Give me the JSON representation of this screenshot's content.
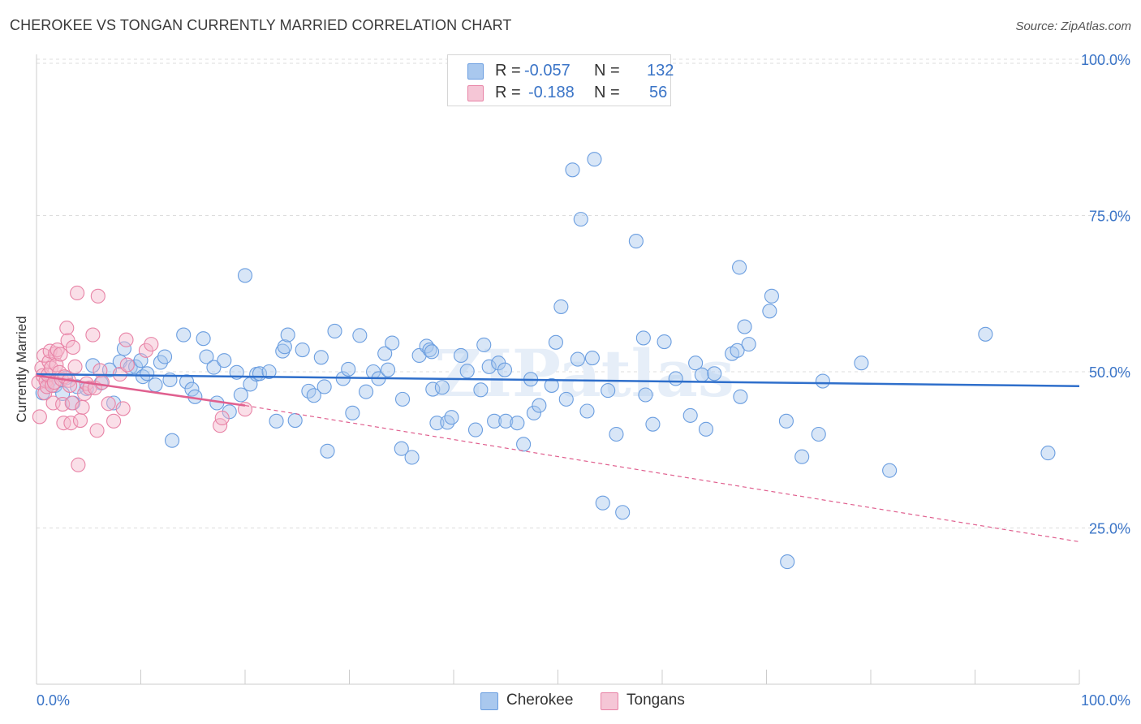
{
  "title": "CHEROKEE VS TONGAN CURRENTLY MARRIED CORRELATION CHART",
  "source": "Source: ZipAtlas.com",
  "watermark": "ZIPatlas",
  "legend": {
    "row1": {
      "r_label": "R =",
      "r_value": "-0.057",
      "n_label": "N =",
      "n_value": "132"
    },
    "row2": {
      "r_label": "R =",
      "r_value": "-0.188",
      "n_label": "N =",
      "n_value": "56"
    }
  },
  "bottom_legend": {
    "cherokee": "Cherokee",
    "tongans": "Tongans"
  },
  "colors": {
    "cherokee_fill": "#a9c8ee",
    "cherokee_stroke": "#6b9ee0",
    "cherokee_line": "#2f6fcb",
    "tongan_fill": "#f5b7cb",
    "tongan_stroke": "#e883a6",
    "tongan_line": "#e0608f",
    "axis_text": "#3a74c7",
    "grid": "#dddddd"
  },
  "chart_data": {
    "type": "scatter",
    "title": "CHEROKEE VS TONGAN CURRENTLY MARRIED CORRELATION CHART",
    "xlabel": "",
    "ylabel": "Currently Married",
    "xlim": [
      0,
      100
    ],
    "ylim": [
      0,
      105
    ],
    "x_tick_labels": [
      "0.0%",
      "100.0%"
    ],
    "y_ticks": [
      25,
      50,
      75,
      100
    ],
    "y_tick_labels": [
      "25.0%",
      "50.0%",
      "75.0%",
      "100.0%"
    ],
    "grid": true,
    "legend_position": "top-center",
    "series": [
      {
        "name": "Cherokee",
        "r": -0.057,
        "n": 132,
        "trend": {
          "x": [
            0,
            100
          ],
          "y": [
            49.6,
            47.7
          ],
          "style": "solid"
        },
        "points": [
          [
            0.6,
            46.6
          ],
          [
            1.2,
            48.5
          ],
          [
            1.8,
            47.8
          ],
          [
            2.5,
            46.5
          ],
          [
            2.8,
            49.0
          ],
          [
            3.5,
            45.0
          ],
          [
            3.9,
            47.6
          ],
          [
            4.8,
            47.3
          ],
          [
            5.4,
            51.0
          ],
          [
            6.2,
            48.2
          ],
          [
            7.0,
            50.3
          ],
          [
            7.4,
            45.0
          ],
          [
            8.0,
            51.6
          ],
          [
            8.4,
            53.7
          ],
          [
            9.0,
            50.7
          ],
          [
            9.5,
            50.8
          ],
          [
            10.0,
            51.8
          ],
          [
            10.2,
            49.2
          ],
          [
            10.6,
            49.7
          ],
          [
            11.4,
            47.9
          ],
          [
            11.9,
            51.5
          ],
          [
            12.3,
            52.4
          ],
          [
            12.8,
            48.7
          ],
          [
            13.0,
            39.0
          ],
          [
            14.1,
            55.9
          ],
          [
            14.4,
            48.4
          ],
          [
            14.9,
            47.2
          ],
          [
            15.2,
            46.0
          ],
          [
            16.0,
            55.3
          ],
          [
            16.3,
            52.4
          ],
          [
            17.0,
            50.7
          ],
          [
            17.3,
            45.0
          ],
          [
            18.0,
            51.8
          ],
          [
            18.5,
            43.6
          ],
          [
            19.2,
            49.9
          ],
          [
            19.6,
            46.3
          ],
          [
            20.0,
            65.4
          ],
          [
            20.5,
            48.0
          ],
          [
            21.1,
            49.6
          ],
          [
            21.4,
            49.7
          ],
          [
            22.3,
            50.0
          ],
          [
            23.0,
            42.1
          ],
          [
            23.6,
            53.3
          ],
          [
            23.8,
            54.0
          ],
          [
            24.1,
            55.9
          ],
          [
            24.8,
            42.2
          ],
          [
            25.5,
            53.5
          ],
          [
            26.1,
            46.9
          ],
          [
            26.6,
            46.2
          ],
          [
            27.3,
            52.3
          ],
          [
            27.6,
            47.6
          ],
          [
            27.9,
            37.3
          ],
          [
            28.6,
            56.5
          ],
          [
            29.4,
            48.9
          ],
          [
            29.9,
            50.4
          ],
          [
            30.3,
            43.4
          ],
          [
            31.0,
            55.8
          ],
          [
            31.6,
            46.8
          ],
          [
            32.3,
            50.0
          ],
          [
            32.8,
            48.9
          ],
          [
            33.4,
            52.9
          ],
          [
            33.7,
            50.3
          ],
          [
            34.1,
            54.6
          ],
          [
            35.1,
            45.6
          ],
          [
            35.0,
            37.7
          ],
          [
            36.0,
            36.3
          ],
          [
            36.7,
            52.6
          ],
          [
            37.4,
            54.1
          ],
          [
            37.7,
            53.5
          ],
          [
            37.9,
            53.2
          ],
          [
            38.0,
            47.2
          ],
          [
            38.4,
            41.8
          ],
          [
            38.9,
            47.5
          ],
          [
            39.4,
            41.9
          ],
          [
            39.8,
            42.7
          ],
          [
            40.7,
            52.6
          ],
          [
            41.3,
            50.1
          ],
          [
            42.1,
            40.7
          ],
          [
            42.6,
            47.1
          ],
          [
            42.9,
            54.3
          ],
          [
            43.4,
            50.8
          ],
          [
            43.9,
            42.1
          ],
          [
            44.3,
            51.4
          ],
          [
            44.9,
            50.3
          ],
          [
            45.0,
            42.1
          ],
          [
            46.1,
            41.8
          ],
          [
            46.7,
            38.4
          ],
          [
            47.4,
            48.8
          ],
          [
            47.7,
            43.4
          ],
          [
            48.2,
            44.6
          ],
          [
            49.4,
            47.8
          ],
          [
            49.8,
            54.7
          ],
          [
            50.3,
            60.4
          ],
          [
            50.8,
            45.6
          ],
          [
            51.4,
            82.3
          ],
          [
            51.9,
            52.0
          ],
          [
            52.2,
            74.4
          ],
          [
            52.8,
            43.7
          ],
          [
            53.3,
            52.2
          ],
          [
            53.5,
            84.0
          ],
          [
            54.3,
            29.0
          ],
          [
            54.8,
            47.0
          ],
          [
            55.6,
            40.0
          ],
          [
            56.2,
            27.5
          ],
          [
            57.5,
            70.9
          ],
          [
            58.2,
            55.4
          ],
          [
            58.4,
            46.3
          ],
          [
            59.1,
            41.6
          ],
          [
            60.2,
            54.8
          ],
          [
            61.3,
            48.9
          ],
          [
            62.7,
            43.0
          ],
          [
            63.2,
            51.4
          ],
          [
            63.8,
            49.5
          ],
          [
            64.2,
            40.8
          ],
          [
            65.0,
            49.7
          ],
          [
            66.7,
            52.9
          ],
          [
            67.2,
            53.4
          ],
          [
            67.4,
            66.7
          ],
          [
            67.5,
            46.0
          ],
          [
            67.9,
            57.2
          ],
          [
            70.3,
            59.7
          ],
          [
            70.5,
            62.1
          ],
          [
            71.9,
            42.1
          ],
          [
            72.0,
            19.6
          ],
          [
            73.4,
            36.4
          ],
          [
            75.0,
            40.0
          ],
          [
            75.4,
            48.5
          ],
          [
            81.8,
            34.2
          ],
          [
            91.0,
            56.0
          ],
          [
            97.0,
            37.0
          ],
          [
            79.1,
            51.4
          ],
          [
            68.3,
            54.4
          ]
        ]
      },
      {
        "name": "Tongans",
        "r": -0.188,
        "n": 56,
        "trend": {
          "x": [
            0,
            20
          ],
          "y": [
            49.4,
            44.6
          ],
          "style": "solid",
          "extension": {
            "x": [
              20,
              100
            ],
            "y": [
              44.6,
              22.8
            ],
            "style": "dashed"
          }
        },
        "points": [
          [
            0.2,
            48.3
          ],
          [
            0.3,
            42.8
          ],
          [
            0.5,
            50.6
          ],
          [
            0.6,
            49.4
          ],
          [
            0.7,
            52.6
          ],
          [
            0.8,
            46.6
          ],
          [
            0.9,
            48.5
          ],
          [
            1.0,
            47.6
          ],
          [
            1.1,
            49.5
          ],
          [
            1.2,
            51.6
          ],
          [
            1.3,
            53.3
          ],
          [
            1.4,
            50.6
          ],
          [
            1.5,
            47.8
          ],
          [
            1.6,
            45.0
          ],
          [
            1.7,
            48.3
          ],
          [
            1.8,
            52.9
          ],
          [
            1.9,
            51.1
          ],
          [
            2.0,
            53.5
          ],
          [
            2.2,
            49.9
          ],
          [
            2.3,
            52.8
          ],
          [
            2.4,
            48.8
          ],
          [
            2.5,
            44.8
          ],
          [
            2.6,
            41.8
          ],
          [
            2.7,
            49.2
          ],
          [
            2.9,
            57.0
          ],
          [
            3.0,
            55.0
          ],
          [
            3.1,
            48.6
          ],
          [
            3.2,
            47.8
          ],
          [
            3.3,
            41.8
          ],
          [
            3.4,
            45.0
          ],
          [
            3.5,
            53.9
          ],
          [
            3.7,
            50.8
          ],
          [
            3.9,
            62.6
          ],
          [
            4.0,
            35.1
          ],
          [
            4.2,
            42.2
          ],
          [
            4.4,
            44.3
          ],
          [
            4.6,
            46.5
          ],
          [
            4.8,
            48.1
          ],
          [
            5.1,
            47.4
          ],
          [
            5.4,
            55.9
          ],
          [
            5.6,
            47.4
          ],
          [
            5.8,
            40.6
          ],
          [
            5.9,
            62.1
          ],
          [
            6.1,
            50.2
          ],
          [
            6.3,
            48.3
          ],
          [
            6.9,
            44.9
          ],
          [
            7.4,
            42.1
          ],
          [
            8.0,
            49.6
          ],
          [
            8.3,
            44.1
          ],
          [
            8.6,
            55.1
          ],
          [
            8.7,
            51.1
          ],
          [
            10.5,
            53.4
          ],
          [
            11.0,
            54.4
          ],
          [
            17.6,
            41.4
          ],
          [
            17.8,
            42.6
          ],
          [
            20.0,
            44.0
          ]
        ]
      }
    ]
  }
}
